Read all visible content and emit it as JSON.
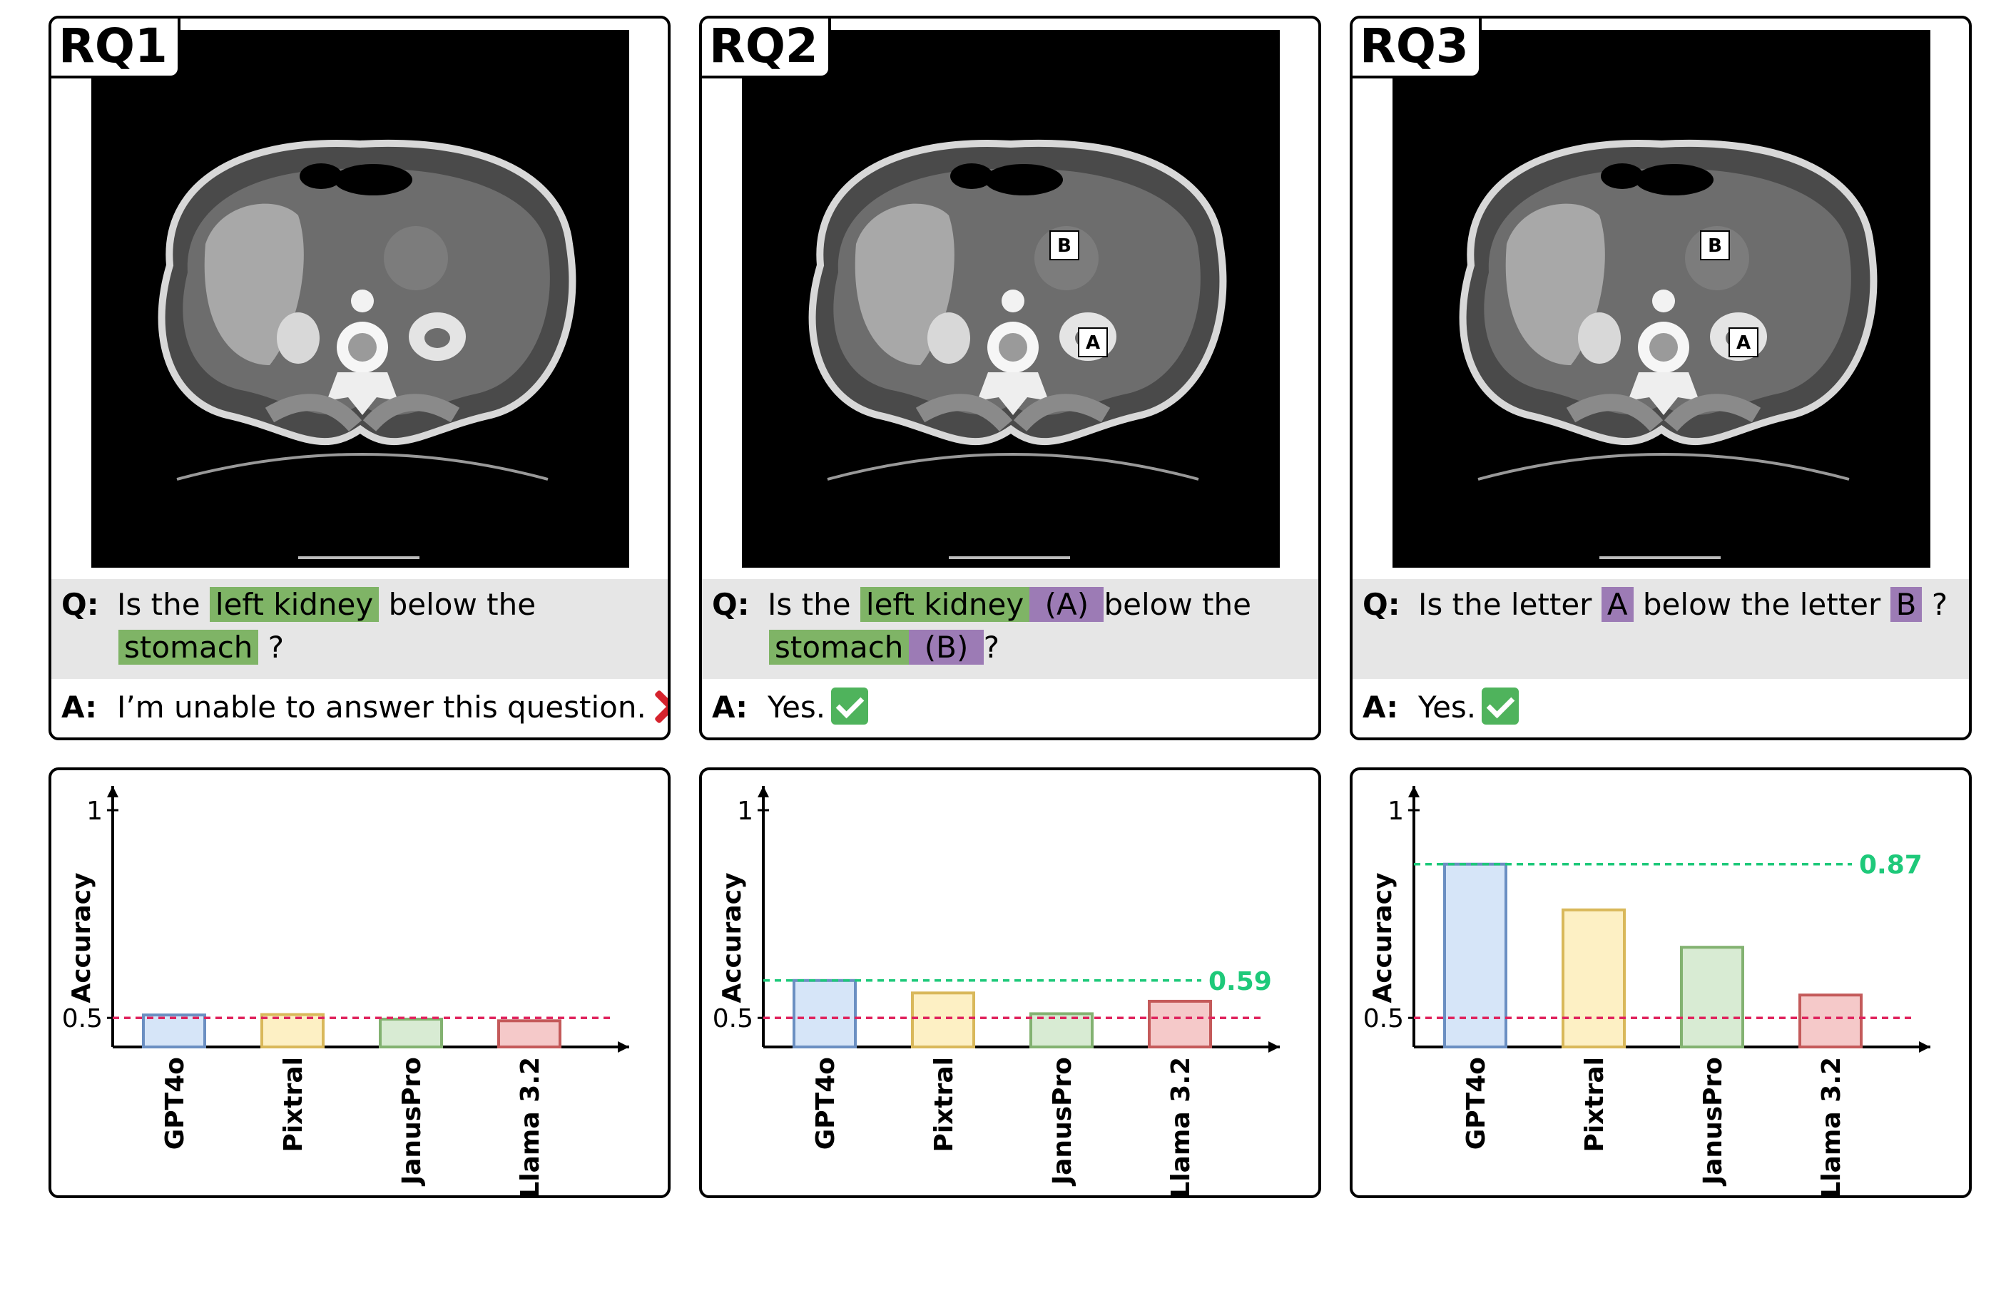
{
  "panels": [
    {
      "label": "RQ1",
      "markers": [],
      "question": [
        [
          {
            "text": "Is the "
          },
          {
            "text": "left kidney",
            "hl": "green"
          },
          {
            "text": " below the"
          }
        ],
        [
          {
            "text": "stomach",
            "hl": "green"
          },
          {
            "text": " ?"
          }
        ]
      ],
      "answer": "I’m unable to answer this question.",
      "answer_mark": "cross-mark-icon"
    },
    {
      "label": "RQ2",
      "markers": [
        {
          "text": "B"
        },
        {
          "text": "A"
        }
      ],
      "question": [
        [
          {
            "text": "Is the "
          },
          {
            "text": "left kidney",
            "hl": "green"
          },
          {
            "text": " (A) ",
            "hl": "purple"
          },
          {
            "text": " below the"
          }
        ],
        [
          {
            "text": "stomach",
            "hl": "green"
          },
          {
            "text": " (B) ",
            "hl": "purple"
          },
          {
            "text": " ?"
          }
        ]
      ],
      "answer": "Yes.",
      "answer_mark": "check-mark-icon"
    },
    {
      "label": "RQ3",
      "markers": [
        {
          "text": "B"
        },
        {
          "text": "A"
        }
      ],
      "question": [
        [
          {
            "text": "Is the letter "
          },
          {
            "text": "A",
            "hl": "purple"
          },
          {
            "text": " below the letter "
          },
          {
            "text": "B",
            "hl": "purple"
          },
          {
            "text": " ?"
          }
        ]
      ],
      "answer": "Yes.",
      "answer_mark": "check-mark-icon"
    }
  ],
  "labels": {
    "question_prefix": "Q:",
    "answer_prefix": "A:"
  },
  "colors": {
    "highlight_green": "#7fb466",
    "highlight_purple": "#9c7bb5",
    "chance_line": "#e0245e",
    "best_line": "#1ec97a"
  },
  "chart_data": [
    {
      "type": "bar",
      "ylabel": "Accuracy",
      "ylim": [
        0.43,
        1.0
      ],
      "yticks": [
        0.5,
        1
      ],
      "categories": [
        "GPT4o",
        "Pixtral",
        "JanusPro",
        "Llama 3.2"
      ],
      "values": [
        0.507,
        0.508,
        0.497,
        0.493
      ],
      "bar_colors": [
        {
          "fill": "#d6e5f8",
          "stroke": "#6b8fc2"
        },
        {
          "fill": "#fdf0c4",
          "stroke": "#d9b85a"
        },
        {
          "fill": "#d8ebd3",
          "stroke": "#83b271"
        },
        {
          "fill": "#f5c9c9",
          "stroke": "#c45a5a"
        }
      ],
      "chance_line": 0.5,
      "best_line": null
    },
    {
      "type": "bar",
      "ylabel": "Accuracy",
      "ylim": [
        0.43,
        1.0
      ],
      "yticks": [
        0.5,
        1
      ],
      "categories": [
        "GPT4o",
        "Pixtral",
        "JanusPro",
        "Llama 3.2"
      ],
      "values": [
        0.59,
        0.56,
        0.51,
        0.54
      ],
      "bar_colors": [
        {
          "fill": "#d6e5f8",
          "stroke": "#6b8fc2"
        },
        {
          "fill": "#fdf0c4",
          "stroke": "#d9b85a"
        },
        {
          "fill": "#d8ebd3",
          "stroke": "#83b271"
        },
        {
          "fill": "#f5c9c9",
          "stroke": "#c45a5a"
        }
      ],
      "chance_line": 0.5,
      "best_line": 0.59,
      "best_label": "0.59"
    },
    {
      "type": "bar",
      "ylabel": "Accuracy",
      "ylim": [
        0.43,
        1.0
      ],
      "yticks": [
        0.5,
        1
      ],
      "categories": [
        "GPT4o",
        "Pixtral",
        "JanusPro",
        "Llama 3.2"
      ],
      "values": [
        0.87,
        0.76,
        0.67,
        0.555
      ],
      "bar_colors": [
        {
          "fill": "#d6e5f8",
          "stroke": "#6b8fc2"
        },
        {
          "fill": "#fdf0c4",
          "stroke": "#d9b85a"
        },
        {
          "fill": "#d8ebd3",
          "stroke": "#83b271"
        },
        {
          "fill": "#f5c9c9",
          "stroke": "#c45a5a"
        }
      ],
      "chance_line": 0.5,
      "best_line": 0.87,
      "best_label": "0.87"
    }
  ]
}
